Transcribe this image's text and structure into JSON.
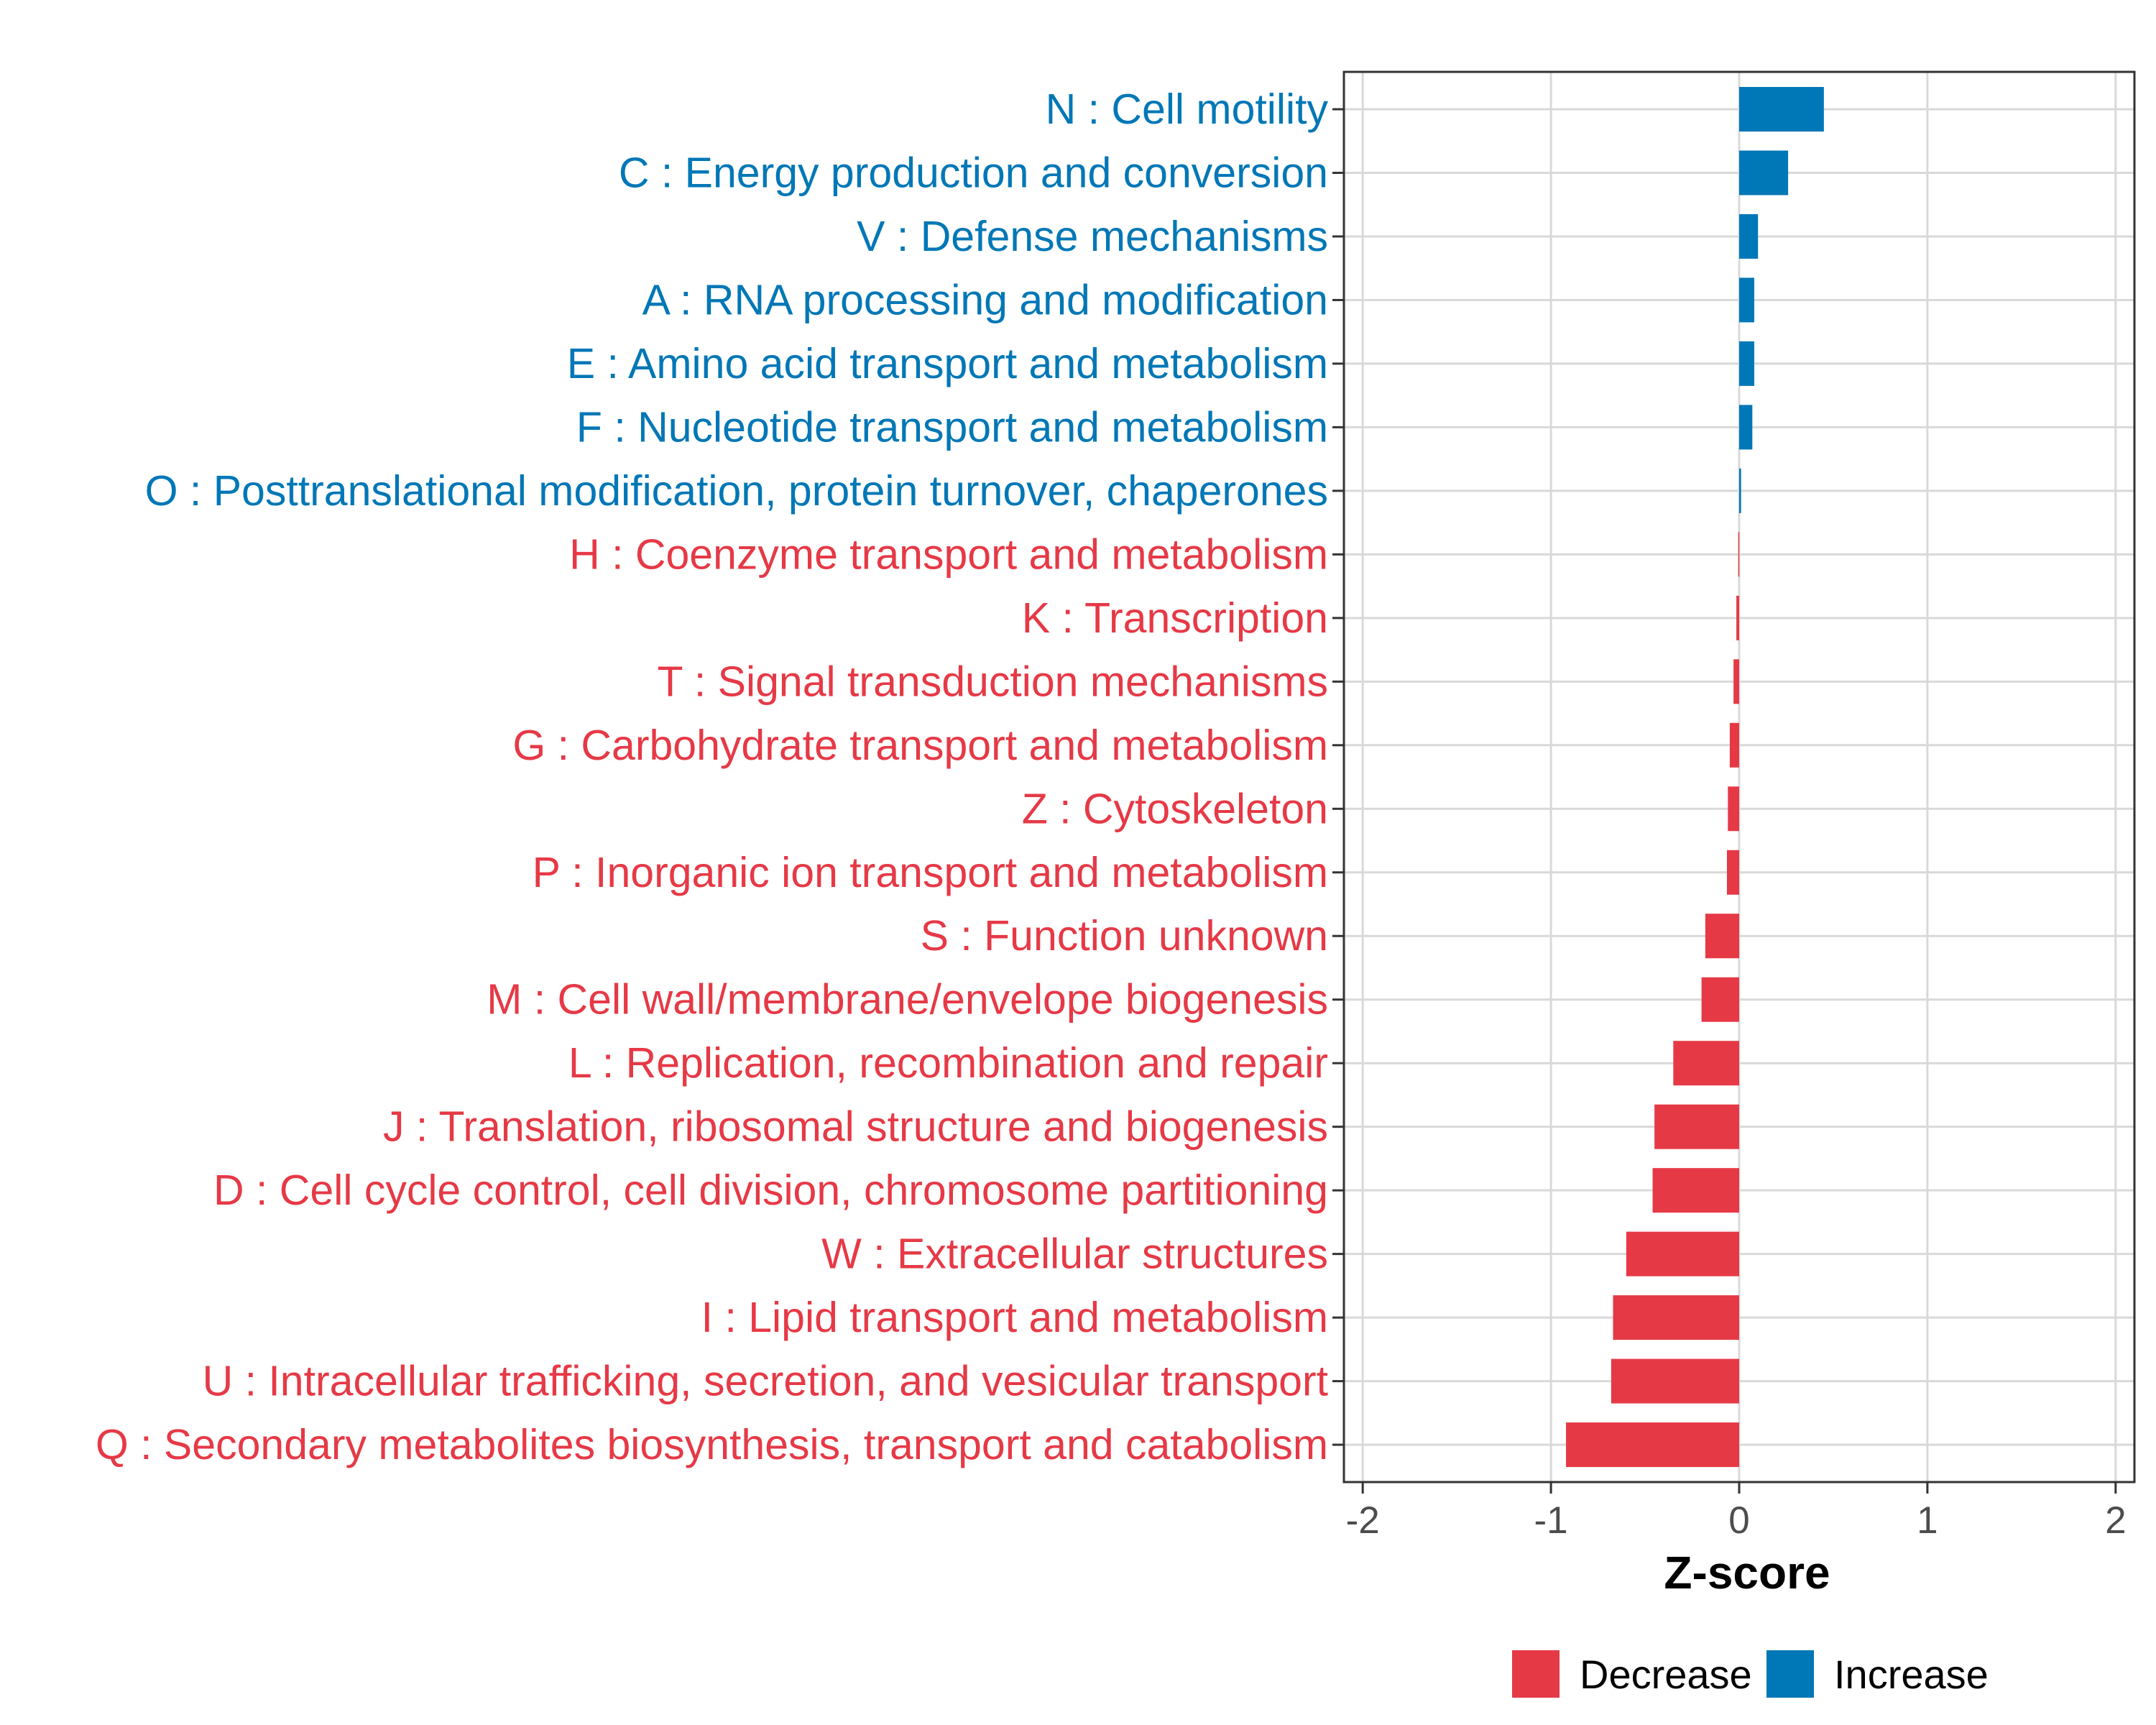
{
  "chart_data": {
    "type": "bar",
    "orientation": "horizontal",
    "xlabel": "Z-score",
    "xlim": [
      -2.1,
      2.1
    ],
    "x_ticks": [
      -2,
      -1,
      0,
      1,
      2
    ],
    "x_tick_labels": [
      "-2",
      "-1",
      "0",
      "1",
      "2"
    ],
    "grid": true,
    "legend_position": "bottom",
    "colors": {
      "Decrease": "#E63946",
      "Increase": "#0077B6"
    },
    "legend": [
      {
        "label": "Decrease",
        "color": "#E63946"
      },
      {
        "label": "Increase",
        "color": "#0077B6"
      }
    ],
    "categories": [
      "N : Cell motility",
      "C : Energy production and conversion",
      "V : Defense mechanisms",
      "A : RNA processing and modification",
      "E : Amino acid transport and metabolism",
      "F : Nucleotide transport and metabolism",
      "O : Posttranslational modification, protein turnover, chaperones",
      "H : Coenzyme transport and metabolism",
      "K : Transcription",
      "T : Signal transduction mechanisms",
      "G : Carbohydrate transport and metabolism",
      "Z : Cytoskeleton",
      "P : Inorganic ion transport and metabolism",
      "S : Function unknown",
      "M : Cell wall/membrane/envelope biogenesis",
      "L : Replication, recombination and repair",
      "J : Translation, ribosomal structure and biogenesis",
      "D : Cell cycle control, cell division, chromosome partitioning",
      "W : Extracellular structures",
      "I : Lipid transport and metabolism",
      "U : Intracellular trafficking, secretion, and vesicular transport",
      "Q : Secondary metabolites biosynthesis, transport and catabolism"
    ],
    "values": [
      0.45,
      0.26,
      0.1,
      0.08,
      0.08,
      0.07,
      0.01,
      -0.005,
      -0.015,
      -0.03,
      -0.05,
      -0.06,
      -0.065,
      -0.18,
      -0.2,
      -0.35,
      -0.45,
      -0.46,
      -0.6,
      -0.67,
      -0.68,
      -0.92
    ],
    "direction": [
      "Increase",
      "Increase",
      "Increase",
      "Increase",
      "Increase",
      "Increase",
      "Increase",
      "Decrease",
      "Decrease",
      "Decrease",
      "Decrease",
      "Decrease",
      "Decrease",
      "Decrease",
      "Decrease",
      "Decrease",
      "Decrease",
      "Decrease",
      "Decrease",
      "Decrease",
      "Decrease",
      "Decrease"
    ]
  }
}
